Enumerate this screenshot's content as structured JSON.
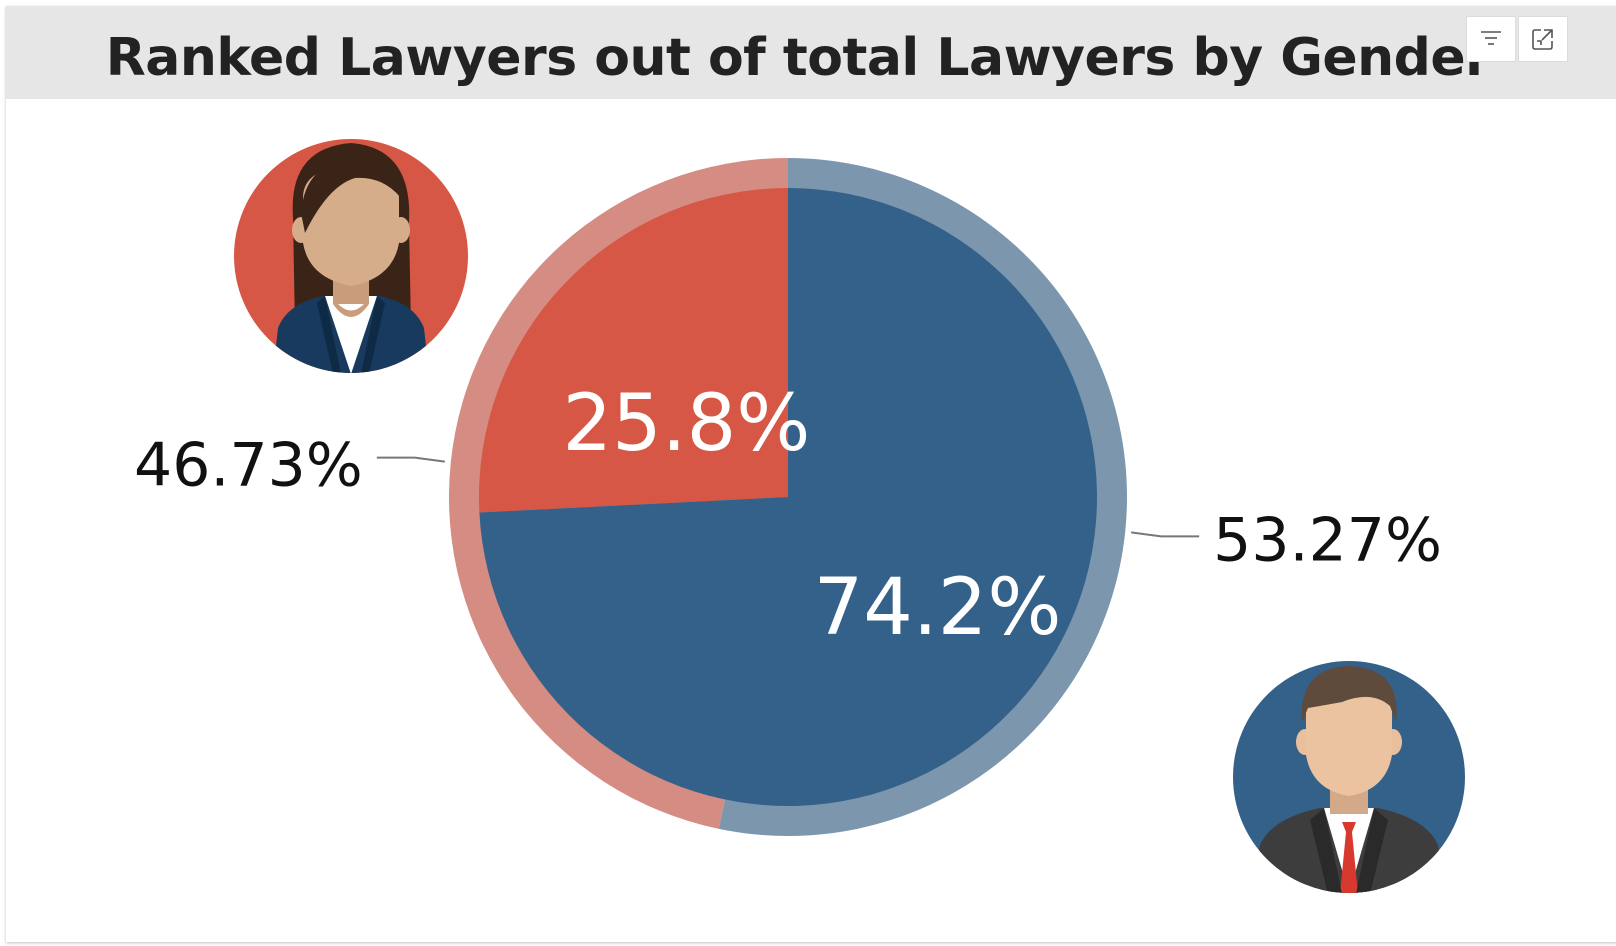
{
  "title": "Ranked Lawyers out of total Lawyers by Gender",
  "header_icons": [
    "filter-icon",
    "focus-mode-icon"
  ],
  "colors": {
    "female_inner": "#d65745",
    "female_outer": "#d48c83",
    "male_inner": "#33618a",
    "male_outer": "#7c96ae",
    "title_bar": "#e6e6e6"
  },
  "chart_data": [
    {
      "type": "pie",
      "description_ring": "inner",
      "categories": [
        "Female",
        "Male"
      ],
      "values": [
        25.8,
        74.2
      ],
      "labels": [
        "25.8%",
        "74.2%"
      ]
    },
    {
      "type": "pie",
      "description_ring": "outer",
      "categories": [
        "Female",
        "Male"
      ],
      "values": [
        46.73,
        53.27
      ],
      "labels": [
        "46.73%",
        "53.27%"
      ]
    }
  ]
}
